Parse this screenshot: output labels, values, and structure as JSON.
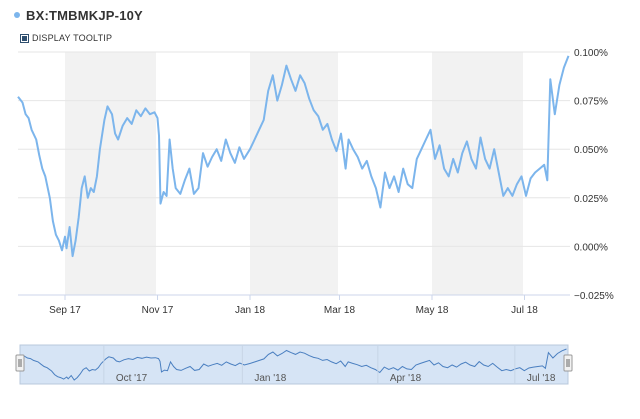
{
  "header": {
    "title": "BX:TMBMKJP-10Y",
    "tooltip_toggle_label": "DISPLAY TOOLTIP"
  },
  "colors": {
    "series": "#7cb5ec",
    "band": "#f2f2f2",
    "navigator_fill": "#d6e4f5"
  },
  "chart_data": {
    "type": "line",
    "title": "BX:TMBMKJP-10Y",
    "x_range": [
      "2017-08-01",
      "2018-07-31"
    ],
    "ylim": [
      -0.025,
      0.1
    ],
    "y_ticks": [
      {
        "value": 0.1,
        "label": "0.100%"
      },
      {
        "value": 0.075,
        "label": "0.075%"
      },
      {
        "value": 0.05,
        "label": "0.050%"
      },
      {
        "value": 0.025,
        "label": "0.025%"
      },
      {
        "value": 0.0,
        "label": "0.000%"
      },
      {
        "value": -0.025,
        "label": "−0.025%"
      }
    ],
    "x_ticks": [
      {
        "date": "2017-09-01",
        "label": "Sep 17"
      },
      {
        "date": "2017-11-01",
        "label": "Nov 17"
      },
      {
        "date": "2018-01-01",
        "label": "Jan 18"
      },
      {
        "date": "2018-03-01",
        "label": "Mar 18"
      },
      {
        "date": "2018-05-01",
        "label": "May 18"
      },
      {
        "date": "2018-07-01",
        "label": "Jul 18"
      }
    ],
    "shaded_months": [
      [
        "2017-09-01",
        "2017-10-31"
      ],
      [
        "2018-01-01",
        "2018-02-28"
      ],
      [
        "2018-05-01",
        "2018-06-30"
      ]
    ],
    "navigator_ticks": [
      {
        "date": "2017-10-01",
        "label": "Oct '17"
      },
      {
        "date": "2018-01-01",
        "label": "Jan '18"
      },
      {
        "date": "2018-04-01",
        "label": "Apr '18"
      },
      {
        "date": "2018-07-01",
        "label": "Jul '18"
      }
    ],
    "series": [
      {
        "points": [
          [
            "2017-08-01",
            0.077
          ],
          [
            "2017-08-04",
            0.074
          ],
          [
            "2017-08-06",
            0.068
          ],
          [
            "2017-08-08",
            0.066
          ],
          [
            "2017-08-10",
            0.06
          ],
          [
            "2017-08-13",
            0.055
          ],
          [
            "2017-08-15",
            0.047
          ],
          [
            "2017-08-17",
            0.04
          ],
          [
            "2017-08-19",
            0.036
          ],
          [
            "2017-08-22",
            0.025
          ],
          [
            "2017-08-24",
            0.013
          ],
          [
            "2017-08-26",
            0.006
          ],
          [
            "2017-08-28",
            0.003
          ],
          [
            "2017-08-30",
            -0.002
          ],
          [
            "2017-09-01",
            0.005
          ],
          [
            "2017-09-02",
            -0.001
          ],
          [
            "2017-09-04",
            0.01
          ],
          [
            "2017-09-06",
            -0.005
          ],
          [
            "2017-09-08",
            0.003
          ],
          [
            "2017-09-10",
            0.015
          ],
          [
            "2017-09-12",
            0.03
          ],
          [
            "2017-09-14",
            0.036
          ],
          [
            "2017-09-16",
            0.025
          ],
          [
            "2017-09-18",
            0.03
          ],
          [
            "2017-09-20",
            0.028
          ],
          [
            "2017-09-22",
            0.036
          ],
          [
            "2017-09-24",
            0.05
          ],
          [
            "2017-09-27",
            0.065
          ],
          [
            "2017-09-29",
            0.072
          ],
          [
            "2017-10-02",
            0.068
          ],
          [
            "2017-10-04",
            0.058
          ],
          [
            "2017-10-06",
            0.055
          ],
          [
            "2017-10-09",
            0.062
          ],
          [
            "2017-10-12",
            0.066
          ],
          [
            "2017-10-15",
            0.063
          ],
          [
            "2017-10-18",
            0.07
          ],
          [
            "2017-10-21",
            0.067
          ],
          [
            "2017-10-24",
            0.071
          ],
          [
            "2017-10-27",
            0.068
          ],
          [
            "2017-10-30",
            0.069
          ],
          [
            "2017-11-01",
            0.066
          ],
          [
            "2017-11-02",
            0.057
          ],
          [
            "2017-11-03",
            0.022
          ],
          [
            "2017-11-05",
            0.028
          ],
          [
            "2017-11-07",
            0.026
          ],
          [
            "2017-11-09",
            0.055
          ],
          [
            "2017-11-11",
            0.04
          ],
          [
            "2017-11-13",
            0.03
          ],
          [
            "2017-11-16",
            0.027
          ],
          [
            "2017-11-19",
            0.034
          ],
          [
            "2017-11-22",
            0.04
          ],
          [
            "2017-11-25",
            0.027
          ],
          [
            "2017-11-28",
            0.03
          ],
          [
            "2017-12-01",
            0.048
          ],
          [
            "2017-12-04",
            0.041
          ],
          [
            "2017-12-07",
            0.046
          ],
          [
            "2017-12-10",
            0.05
          ],
          [
            "2017-12-13",
            0.044
          ],
          [
            "2017-12-16",
            0.055
          ],
          [
            "2017-12-19",
            0.048
          ],
          [
            "2017-12-22",
            0.043
          ],
          [
            "2017-12-25",
            0.051
          ],
          [
            "2017-12-28",
            0.045
          ],
          [
            "2018-01-01",
            0.05
          ],
          [
            "2018-01-04",
            0.055
          ],
          [
            "2018-01-07",
            0.06
          ],
          [
            "2018-01-10",
            0.065
          ],
          [
            "2018-01-13",
            0.08
          ],
          [
            "2018-01-16",
            0.088
          ],
          [
            "2018-01-19",
            0.075
          ],
          [
            "2018-01-22",
            0.083
          ],
          [
            "2018-01-25",
            0.093
          ],
          [
            "2018-01-28",
            0.086
          ],
          [
            "2018-01-31",
            0.08
          ],
          [
            "2018-02-03",
            0.088
          ],
          [
            "2018-02-06",
            0.084
          ],
          [
            "2018-02-09",
            0.076
          ],
          [
            "2018-02-12",
            0.07
          ],
          [
            "2018-02-15",
            0.067
          ],
          [
            "2018-02-18",
            0.06
          ],
          [
            "2018-02-21",
            0.063
          ],
          [
            "2018-02-24",
            0.055
          ],
          [
            "2018-02-27",
            0.049
          ],
          [
            "2018-03-02",
            0.058
          ],
          [
            "2018-03-05",
            0.04
          ],
          [
            "2018-03-07",
            0.055
          ],
          [
            "2018-03-10",
            0.05
          ],
          [
            "2018-03-13",
            0.046
          ],
          [
            "2018-03-16",
            0.04
          ],
          [
            "2018-03-19",
            0.044
          ],
          [
            "2018-03-22",
            0.036
          ],
          [
            "2018-03-25",
            0.03
          ],
          [
            "2018-03-28",
            0.02
          ],
          [
            "2018-03-31",
            0.038
          ],
          [
            "2018-04-03",
            0.03
          ],
          [
            "2018-04-06",
            0.036
          ],
          [
            "2018-04-09",
            0.028
          ],
          [
            "2018-04-12",
            0.04
          ],
          [
            "2018-04-15",
            0.032
          ],
          [
            "2018-04-18",
            0.03
          ],
          [
            "2018-04-21",
            0.045
          ],
          [
            "2018-04-24",
            0.05
          ],
          [
            "2018-04-27",
            0.055
          ],
          [
            "2018-04-30",
            0.06
          ],
          [
            "2018-05-03",
            0.045
          ],
          [
            "2018-05-06",
            0.052
          ],
          [
            "2018-05-09",
            0.04
          ],
          [
            "2018-05-12",
            0.036
          ],
          [
            "2018-05-15",
            0.045
          ],
          [
            "2018-05-18",
            0.038
          ],
          [
            "2018-05-21",
            0.048
          ],
          [
            "2018-05-24",
            0.054
          ],
          [
            "2018-05-27",
            0.045
          ],
          [
            "2018-05-30",
            0.04
          ],
          [
            "2018-06-02",
            0.056
          ],
          [
            "2018-06-05",
            0.045
          ],
          [
            "2018-06-08",
            0.04
          ],
          [
            "2018-06-11",
            0.05
          ],
          [
            "2018-06-14",
            0.038
          ],
          [
            "2018-06-17",
            0.026
          ],
          [
            "2018-06-20",
            0.03
          ],
          [
            "2018-06-23",
            0.026
          ],
          [
            "2018-06-26",
            0.032
          ],
          [
            "2018-06-29",
            0.036
          ],
          [
            "2018-07-02",
            0.026
          ],
          [
            "2018-07-05",
            0.035
          ],
          [
            "2018-07-08",
            0.038
          ],
          [
            "2018-07-11",
            0.04
          ],
          [
            "2018-07-14",
            0.042
          ],
          [
            "2018-07-16",
            0.034
          ],
          [
            "2018-07-18",
            0.086
          ],
          [
            "2018-07-21",
            0.068
          ],
          [
            "2018-07-24",
            0.083
          ],
          [
            "2018-07-27",
            0.092
          ],
          [
            "2018-07-30",
            0.098
          ]
        ]
      }
    ]
  }
}
